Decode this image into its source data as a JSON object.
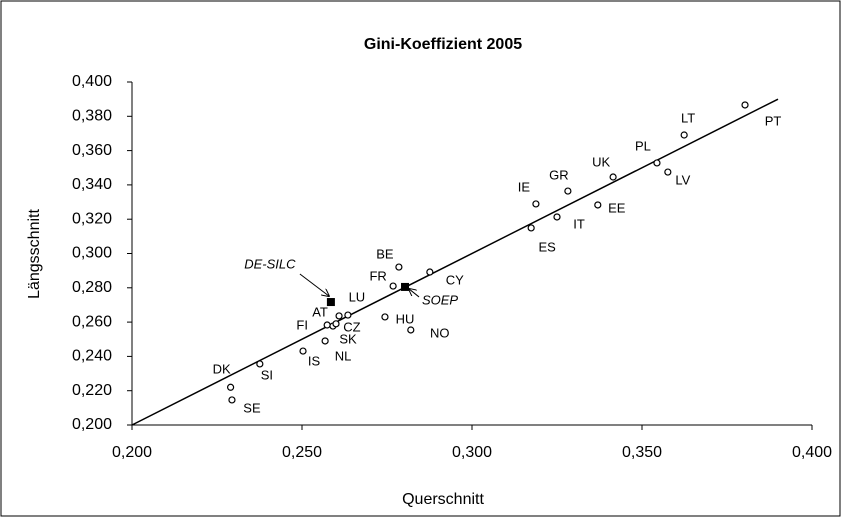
{
  "chart_data": {
    "type": "scatter",
    "title": "Gini-Koeffizient 2005",
    "xlabel": "Querschnitt",
    "ylabel": "Längsschnitt",
    "xlim": [
      0.2,
      0.4
    ],
    "ylim": [
      0.2,
      0.4
    ],
    "xticks": [
      {
        "value": 0.2,
        "label": "0,200"
      },
      {
        "value": 0.25,
        "label": "0,250"
      },
      {
        "value": 0.3,
        "label": "0,300"
      },
      {
        "value": 0.35,
        "label": "0,350"
      },
      {
        "value": 0.4,
        "label": "0,400"
      }
    ],
    "yticks": [
      {
        "value": 0.2,
        "label": "0,200"
      },
      {
        "value": 0.22,
        "label": "0,220"
      },
      {
        "value": 0.24,
        "label": "0,240"
      },
      {
        "value": 0.26,
        "label": "0,260"
      },
      {
        "value": 0.28,
        "label": "0,280"
      },
      {
        "value": 0.3,
        "label": "0,300"
      },
      {
        "value": 0.32,
        "label": "0,320"
      },
      {
        "value": 0.34,
        "label": "0,340"
      },
      {
        "value": 0.36,
        "label": "0,360"
      },
      {
        "value": 0.38,
        "label": "0,380"
      },
      {
        "value": 0.4,
        "label": "0,400"
      }
    ],
    "grid": false,
    "series": [
      {
        "marker": "circle",
        "color": "#000000",
        "labels": [
          "DK",
          "SE",
          "SI",
          "IS",
          "NL",
          "FI",
          "CZ",
          "SK",
          "AT",
          "LU",
          "HU",
          "NO",
          "FR",
          "BE",
          "CY",
          "IE",
          "ES",
          "IT",
          "GR",
          "EE",
          "UK",
          "LV",
          "PL",
          "LT",
          "PT"
        ],
        "x": [
          0.229,
          0.2294,
          0.2376,
          0.2503,
          0.2568,
          0.2574,
          0.2591,
          0.26,
          0.2609,
          0.2635,
          0.2744,
          0.282,
          0.2768,
          0.2785,
          0.2876,
          0.3188,
          0.3174,
          0.325,
          0.3282,
          0.337,
          0.3415,
          0.3576,
          0.3544,
          0.3624,
          0.3803
        ],
        "y": [
          0.222,
          0.2146,
          0.2356,
          0.2431,
          0.249,
          0.2583,
          0.2577,
          0.259,
          0.2636,
          0.2641,
          0.263,
          0.2554,
          0.281,
          0.2921,
          0.2892,
          0.3289,
          0.3149,
          0.3213,
          0.3364,
          0.3283,
          0.3446,
          0.3475,
          0.3528,
          0.3691,
          0.3866
        ]
      },
      {
        "marker": "square",
        "color": "#000000",
        "labels": [
          "DE-SILC",
          "SOEP"
        ],
        "x": [
          0.2585,
          0.2803
        ],
        "y": [
          0.2717,
          0.2805
        ]
      }
    ],
    "reference_line": {
      "x": [
        0.2,
        0.39
      ],
      "y": [
        0.2,
        0.39
      ],
      "color": "#000000"
    }
  }
}
